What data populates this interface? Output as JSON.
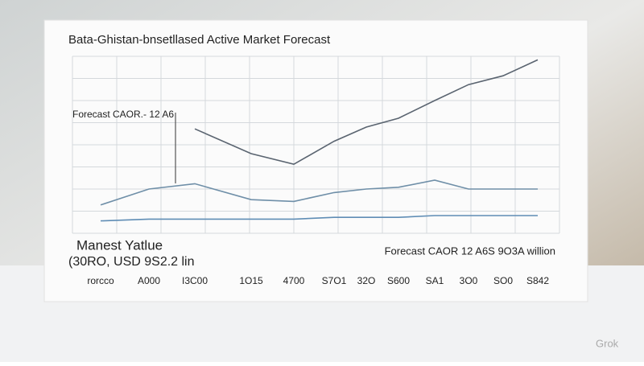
{
  "chart_data": {
    "type": "line",
    "title": "Bata-Ghistan-bnsetllased Active Market Forecast",
    "annotations": [
      "Forecast CAOR.- 12 A6",
      "Manest Yatlue",
      "(30RO, USD 9S2.2 lin",
      "Forecast CAOR 12 A6S 9O3A willion"
    ],
    "watermark": "Grok",
    "categories": [
      "rorcco",
      "A000",
      "I3C00",
      "1O15",
      "4700",
      "S7O1",
      "32O",
      "S600",
      "SA1",
      "3O0",
      "SO0",
      "S842"
    ],
    "ylim": [
      0,
      100
    ],
    "grid": true,
    "series": [
      {
        "name": null,
        "color": "#5a6470",
        "values": [
          null,
          null,
          59,
          45,
          39,
          52,
          60,
          65,
          75,
          84,
          89,
          98
        ]
      },
      {
        "name": null,
        "color": "#6f8fa8",
        "values": [
          16,
          25,
          28,
          19,
          18,
          23,
          25,
          26,
          30,
          25,
          25,
          25
        ]
      },
      {
        "name": null,
        "color": "#5f8db5",
        "values": [
          7,
          8,
          8,
          8,
          8,
          9,
          9,
          9,
          10,
          10,
          10,
          10
        ]
      }
    ]
  }
}
